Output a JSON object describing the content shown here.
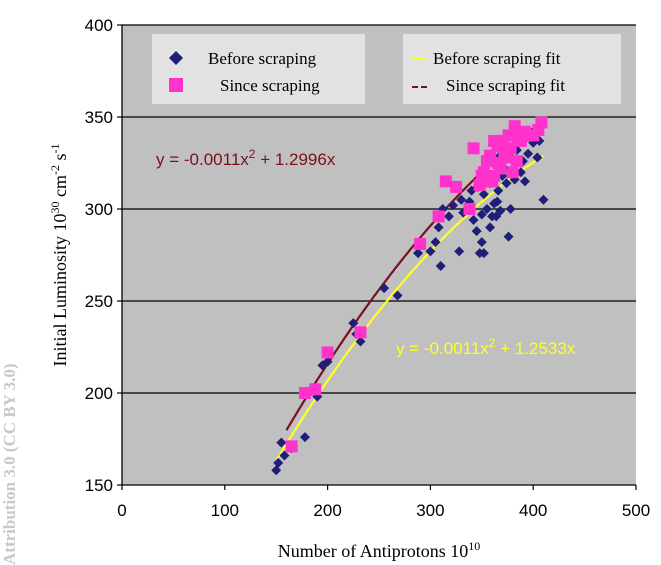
{
  "chart_data": {
    "type": "scatter",
    "title": "",
    "xlabel": "Number of Antiprotons 10",
    "xlabel_sup": "10",
    "ylabel": "Initial Luminosity 10",
    "ylabel_sup1": "30",
    "ylabel_mid": " cm",
    "ylabel_sup2": "-2",
    "ylabel_mid2": " s",
    "ylabel_sup3": "-1",
    "xlim": [
      0,
      500
    ],
    "ylim": [
      150,
      400
    ],
    "xticks": [
      "0",
      "100",
      "200",
      "300",
      "400",
      "500"
    ],
    "yticks": [
      "150",
      "200",
      "250",
      "300",
      "350",
      "400"
    ],
    "grid": "horizontal",
    "legend_position": "top",
    "series": [
      {
        "name": "Before scraping",
        "marker": "diamond",
        "color": "#1f1f7a",
        "points": [
          [
            150,
            158
          ],
          [
            152,
            162
          ],
          [
            155,
            173
          ],
          [
            158,
            166
          ],
          [
            165,
            170
          ],
          [
            178,
            176
          ],
          [
            182,
            200
          ],
          [
            190,
            198
          ],
          [
            195,
            215
          ],
          [
            200,
            217
          ],
          [
            225,
            238
          ],
          [
            228,
            232
          ],
          [
            232,
            228
          ],
          [
            255,
            257
          ],
          [
            268,
            253
          ],
          [
            288,
            276
          ],
          [
            300,
            277
          ],
          [
            305,
            282
          ],
          [
            308,
            290
          ],
          [
            310,
            269
          ],
          [
            312,
            300
          ],
          [
            318,
            296
          ],
          [
            322,
            302
          ],
          [
            328,
            277
          ],
          [
            330,
            305
          ],
          [
            332,
            298
          ],
          [
            338,
            304
          ],
          [
            340,
            310
          ],
          [
            345,
            288
          ],
          [
            346,
            312
          ],
          [
            348,
            276
          ],
          [
            350,
            282
          ],
          [
            352,
            276
          ],
          [
            355,
            300
          ],
          [
            356,
            318
          ],
          [
            358,
            290
          ],
          [
            360,
            296
          ],
          [
            362,
            303
          ],
          [
            365,
            304
          ],
          [
            366,
            310
          ],
          [
            368,
            299
          ],
          [
            370,
            318
          ],
          [
            372,
            322
          ],
          [
            374,
            314
          ],
          [
            376,
            285
          ],
          [
            378,
            300
          ],
          [
            380,
            327
          ],
          [
            382,
            316
          ],
          [
            384,
            332
          ],
          [
            386,
            336
          ],
          [
            388,
            320
          ],
          [
            390,
            326
          ],
          [
            392,
            315
          ],
          [
            395,
            330
          ],
          [
            398,
            339
          ],
          [
            400,
            336
          ],
          [
            402,
            341
          ],
          [
            404,
            328
          ],
          [
            406,
            337
          ],
          [
            410,
            305
          ],
          [
            368,
            329
          ],
          [
            372,
            336
          ],
          [
            376,
            330
          ],
          [
            362,
            326
          ],
          [
            358,
            314
          ],
          [
            385,
            340
          ],
          [
            392,
            338
          ],
          [
            342,
            294
          ],
          [
            352,
            308
          ],
          [
            364,
            296
          ],
          [
            350,
            297
          ]
        ]
      },
      {
        "name": "Since scraping",
        "marker": "square",
        "color": "#ff33cc",
        "points": [
          [
            165,
            171
          ],
          [
            178,
            200
          ],
          [
            188,
            202
          ],
          [
            200,
            222
          ],
          [
            232,
            233
          ],
          [
            290,
            281
          ],
          [
            308,
            296
          ],
          [
            315,
            315
          ],
          [
            325,
            312
          ],
          [
            338,
            300
          ],
          [
            342,
            333
          ],
          [
            348,
            313
          ],
          [
            350,
            318
          ],
          [
            352,
            320
          ],
          [
            355,
            326
          ],
          [
            358,
            329
          ],
          [
            360,
            315
          ],
          [
            362,
            318
          ],
          [
            365,
            334
          ],
          [
            368,
            322
          ],
          [
            370,
            337
          ],
          [
            372,
            330
          ],
          [
            374,
            328
          ],
          [
            376,
            340
          ],
          [
            378,
            333
          ],
          [
            380,
            320
          ],
          [
            382,
            345
          ],
          [
            385,
            339
          ],
          [
            388,
            337
          ],
          [
            392,
            342
          ],
          [
            396,
            340
          ],
          [
            400,
            340
          ],
          [
            405,
            343
          ],
          [
            408,
            347
          ],
          [
            362,
            337
          ],
          [
            356,
            315
          ],
          [
            366,
            325
          ],
          [
            384,
            326
          ]
        ]
      },
      {
        "name": "Before scraping fit",
        "type": "line",
        "color": "#ffff22",
        "coeffs": {
          "a": -0.0011,
          "b": 1.2533
        },
        "x_range": [
          150,
          410
        ]
      },
      {
        "name": "Since scraping fit",
        "type": "line",
        "color": "#7a1020",
        "coeffs": {
          "a": -0.0011,
          "b": 1.2996
        },
        "x_range": [
          160,
          410
        ]
      }
    ],
    "annotations": [
      {
        "text": "y = -0.0011x",
        "sup": "2",
        "rest": " + 1.2996x",
        "color": "#7a1020"
      },
      {
        "text": "y = -0.0011x",
        "sup": "2",
        "rest": " + 1.2533x",
        "color": "#ffff22"
      }
    ],
    "background": "#c0c0c0"
  },
  "watermark": "Attribution 3.0 (CC BY 3.0)"
}
